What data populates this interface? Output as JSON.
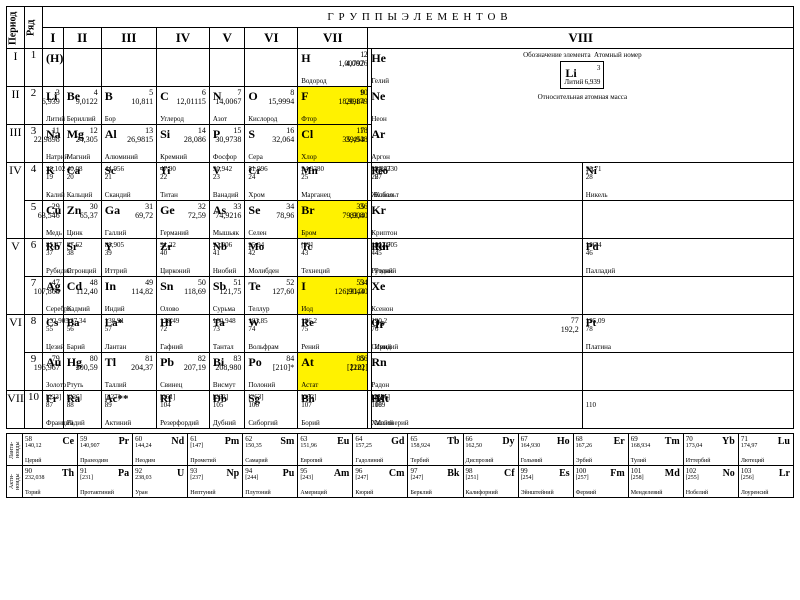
{
  "header": {
    "title": "Г Р У П П Ы   Э Л Е М Е Н Т О В"
  },
  "labels": {
    "period": "Период",
    "row": "Ряд",
    "lanth": "Ланта-ноиды",
    "actin": "Акти-ноиды"
  },
  "groups": [
    "I",
    "II",
    "III",
    "IV",
    "V",
    "VI",
    "VII",
    "VIII"
  ],
  "periods": [
    "I",
    "II",
    "III",
    "IV",
    "V",
    "VI",
    "VII"
  ],
  "rows": [
    "1",
    "2",
    "3",
    "4",
    "5",
    "6",
    "7",
    "8",
    "9",
    "10"
  ],
  "legend": {
    "l1": "Обозначение элемента",
    "l2": "Атомный номер",
    "l3": "Относительная атомная масса",
    "ex": {
      "sym": "Li",
      "num": "3",
      "mass": "6,939",
      "name": "Литий"
    }
  },
  "colors": {
    "highlight": "#fff200",
    "bg": "#ffffff",
    "border": "#000000"
  },
  "e": {
    "H": {
      "s": "H",
      "n": "1",
      "m": "1,00797",
      "nm": "Водород"
    },
    "Hp": {
      "s": "(H)",
      "n": "",
      "m": "",
      "nm": ""
    },
    "He": {
      "s": "He",
      "n": "2",
      "m": "4,0026",
      "nm": "Гелий"
    },
    "Li": {
      "s": "Li",
      "n": "3",
      "m": "6,939",
      "nm": "Литий"
    },
    "Be": {
      "s": "Be",
      "n": "4",
      "m": "9,0122",
      "nm": "Бериллий"
    },
    "B": {
      "s": "B",
      "n": "5",
      "m": "10,811",
      "nm": "Бор"
    },
    "C": {
      "s": "C",
      "n": "6",
      "m": "12,01115",
      "nm": "Углерод"
    },
    "N": {
      "s": "N",
      "n": "7",
      "m": "14,0067",
      "nm": "Азот"
    },
    "O": {
      "s": "O",
      "n": "8",
      "m": "15,9994",
      "nm": "Кислород"
    },
    "F": {
      "s": "F",
      "n": "9",
      "m": "18,9984",
      "nm": "Фтор"
    },
    "Ne": {
      "s": "Ne",
      "n": "10",
      "m": "20,179",
      "nm": "Неон"
    },
    "Na": {
      "s": "Na",
      "n": "11",
      "m": "22,9898",
      "nm": "Натрий"
    },
    "Mg": {
      "s": "Mg",
      "n": "12",
      "m": "24,305",
      "nm": "Магний"
    },
    "Al": {
      "s": "Al",
      "n": "13",
      "m": "26,9815",
      "nm": "Алюминий"
    },
    "Si": {
      "s": "Si",
      "n": "14",
      "m": "28,086",
      "nm": "Кремний"
    },
    "P": {
      "s": "P",
      "n": "15",
      "m": "30,9738",
      "nm": "Фосфор"
    },
    "S": {
      "s": "S",
      "n": "16",
      "m": "32,064",
      "nm": "Сера"
    },
    "Cl": {
      "s": "Cl",
      "n": "17",
      "m": "35,453",
      "nm": "Хлор"
    },
    "Ar": {
      "s": "Ar",
      "n": "18",
      "m": "39,948",
      "nm": "Аргон"
    },
    "K": {
      "s": "K",
      "n": "19",
      "m": "39,102",
      "nm": "Калий"
    },
    "Ca": {
      "s": "Ca",
      "n": "20",
      "m": "40,08",
      "nm": "Кальций"
    },
    "Sc": {
      "s": "Sc",
      "n": "21",
      "m": "44,956",
      "nm": "Скандий"
    },
    "Ti": {
      "s": "Ti",
      "n": "22",
      "m": "47,90",
      "nm": "Титан"
    },
    "V": {
      "s": "V",
      "n": "23",
      "m": "50,942",
      "nm": "Ванадий"
    },
    "Cr": {
      "s": "Cr",
      "n": "24",
      "m": "51,996",
      "nm": "Хром"
    },
    "Mn": {
      "s": "Mn",
      "n": "25",
      "m": "54,9380",
      "nm": "Марганец"
    },
    "Fe": {
      "s": "Fe",
      "n": "26",
      "m": "55,847",
      "nm": "Железо"
    },
    "Co": {
      "s": "Co",
      "n": "27",
      "m": "58,9330",
      "nm": "Кобальт"
    },
    "Ni": {
      "s": "Ni",
      "n": "28",
      "m": "58,71",
      "nm": "Никель"
    },
    "Cu": {
      "s": "Cu",
      "n": "29",
      "m": "63,546",
      "nm": "Медь"
    },
    "Zn": {
      "s": "Zn",
      "n": "30",
      "m": "65,37",
      "nm": "Цинк"
    },
    "Ga": {
      "s": "Ga",
      "n": "31",
      "m": "69,72",
      "nm": "Галлий"
    },
    "Ge": {
      "s": "Ge",
      "n": "32",
      "m": "72,59",
      "nm": "Германий"
    },
    "As": {
      "s": "As",
      "n": "33",
      "m": "74,9216",
      "nm": "Мышьяк"
    },
    "Se": {
      "s": "Se",
      "n": "34",
      "m": "78,96",
      "nm": "Селен"
    },
    "Br": {
      "s": "Br",
      "n": "35",
      "m": "79,904",
      "nm": "Бром"
    },
    "Kr": {
      "s": "Kr",
      "n": "36",
      "m": "83,80",
      "nm": "Криптон"
    },
    "Rb": {
      "s": "Rb",
      "n": "37",
      "m": "85,47",
      "nm": "Рубидий"
    },
    "Sr": {
      "s": "Sr",
      "n": "38",
      "m": "87,62",
      "nm": "Стронций"
    },
    "Y": {
      "s": "Y",
      "n": "39",
      "m": "88,905",
      "nm": "Иттрий"
    },
    "Zr": {
      "s": "Zr",
      "n": "40",
      "m": "91,22",
      "nm": "Цирконий"
    },
    "Nb": {
      "s": "Nb",
      "n": "41",
      "m": "92,906",
      "nm": "Ниобий"
    },
    "Mo": {
      "s": "Mo",
      "n": "42",
      "m": "95,94",
      "nm": "Молибден"
    },
    "Tc": {
      "s": "Tc",
      "n": "43",
      "m": "[99]",
      "nm": "Технеций"
    },
    "Ru": {
      "s": "Ru",
      "n": "44",
      "m": "101,07",
      "nm": "Рутений"
    },
    "Rh": {
      "s": "Rh",
      "n": "45",
      "m": "102,905",
      "nm": "Родий"
    },
    "Pd": {
      "s": "Pd",
      "n": "46",
      "m": "106,4",
      "nm": "Палладий"
    },
    "Ag": {
      "s": "Ag",
      "n": "47",
      "m": "107,868",
      "nm": "Серебро"
    },
    "Cd": {
      "s": "Cd",
      "n": "48",
      "m": "112,40",
      "nm": "Кадмий"
    },
    "In": {
      "s": "In",
      "n": "49",
      "m": "114,82",
      "nm": "Индий"
    },
    "Sn": {
      "s": "Sn",
      "n": "50",
      "m": "118,69",
      "nm": "Олово"
    },
    "Sb": {
      "s": "Sb",
      "n": "51",
      "m": "121,75",
      "nm": "Сурьма"
    },
    "Te": {
      "s": "Te",
      "n": "52",
      "m": "127,60",
      "nm": "Теллур"
    },
    "I": {
      "s": "I",
      "n": "53",
      "m": "126,9044",
      "nm": "Иод"
    },
    "Xe": {
      "s": "Xe",
      "n": "54",
      "m": "131,30",
      "nm": "Ксенон"
    },
    "Cs": {
      "s": "Cs",
      "n": "55",
      "m": "132,905",
      "nm": "Цезий"
    },
    "Ba": {
      "s": "Ba",
      "n": "56",
      "m": "137,34",
      "nm": "Барий"
    },
    "La": {
      "s": "La*",
      "n": "57",
      "m": "138,91",
      "nm": "Лантан"
    },
    "Hf": {
      "s": "Hf",
      "n": "72",
      "m": "178,49",
      "nm": "Гафний"
    },
    "Ta": {
      "s": "Ta",
      "n": "73",
      "m": "180,948",
      "nm": "Тантал"
    },
    "W": {
      "s": "W",
      "n": "74",
      "m": "183,85",
      "nm": "Вольфрам"
    },
    "Re": {
      "s": "Re",
      "n": "75",
      "m": "186,2",
      "nm": "Рений"
    },
    "Os": {
      "s": "Os",
      "n": "76",
      "m": "190,2",
      "nm": "Осмий"
    },
    "Ir": {
      "s": "Ir",
      "n": "77",
      "m": "192,2",
      "nm": "Иридий"
    },
    "Pt": {
      "s": "Pt",
      "n": "78",
      "m": "195,09",
      "nm": "Платина"
    },
    "Au": {
      "s": "Au",
      "n": "79",
      "m": "196,967",
      "nm": "Золото"
    },
    "Hg": {
      "s": "Hg",
      "n": "80",
      "m": "200,59",
      "nm": "Ртуть"
    },
    "Tl": {
      "s": "Tl",
      "n": "81",
      "m": "204,37",
      "nm": "Таллий"
    },
    "Pb": {
      "s": "Pb",
      "n": "82",
      "m": "207,19",
      "nm": "Свинец"
    },
    "Bi": {
      "s": "Bi",
      "n": "83",
      "m": "208,980",
      "nm": "Висмут"
    },
    "Po": {
      "s": "Po",
      "n": "84",
      "m": "[210]*",
      "nm": "Полоний"
    },
    "At": {
      "s": "At",
      "n": "85",
      "m": "[210]",
      "nm": "Астат"
    },
    "Rn": {
      "s": "Rn",
      "n": "86",
      "m": "[222]",
      "nm": "Радон"
    },
    "Fr": {
      "s": "Fr",
      "n": "87",
      "m": "[223]",
      "nm": "Франций"
    },
    "Ra": {
      "s": "Ra",
      "n": "88",
      "m": "[226]",
      "nm": "Радий"
    },
    "Ac": {
      "s": "Ac**",
      "n": "89",
      "m": "[227]",
      "nm": "Актиний"
    },
    "Rf": {
      "s": "Rf",
      "n": "104",
      "m": "[261]",
      "nm": "Резерфордий"
    },
    "Db": {
      "s": "Db",
      "n": "105",
      "m": "[262]",
      "nm": "Дубний"
    },
    "Sg": {
      "s": "Sg",
      "n": "106",
      "m": "[263]",
      "nm": "Сиборгий"
    },
    "Bh": {
      "s": "Bh",
      "n": "107",
      "m": "[262]",
      "nm": "Борий"
    },
    "Hs": {
      "s": "Hs",
      "n": "108",
      "m": "[265]",
      "nm": "Хассий"
    },
    "Mt": {
      "s": "Mt",
      "n": "109",
      "m": "[266]",
      "nm": "Мейтнерий"
    },
    "n110": {
      "s": "",
      "n": "110",
      "m": "",
      "nm": ""
    }
  },
  "lan": [
    {
      "s": "Ce",
      "n": "58",
      "m": "140,12",
      "nm": "Церий"
    },
    {
      "s": "Pr",
      "n": "59",
      "m": "140,907",
      "nm": "Празеодим"
    },
    {
      "s": "Nd",
      "n": "60",
      "m": "144,24",
      "nm": "Неодим"
    },
    {
      "s": "Pm",
      "n": "61",
      "m": "[147]",
      "nm": "Прометий"
    },
    {
      "s": "Sm",
      "n": "62",
      "m": "150,35",
      "nm": "Самарий"
    },
    {
      "s": "Eu",
      "n": "63",
      "m": "151,96",
      "nm": "Европий"
    },
    {
      "s": "Gd",
      "n": "64",
      "m": "157,25",
      "nm": "Гадолиний"
    },
    {
      "s": "Tb",
      "n": "65",
      "m": "158,924",
      "nm": "Тербий"
    },
    {
      "s": "Dy",
      "n": "66",
      "m": "162,50",
      "nm": "Диспрозий"
    },
    {
      "s": "Ho",
      "n": "67",
      "m": "164,930",
      "nm": "Гольмий"
    },
    {
      "s": "Er",
      "n": "68",
      "m": "167,26",
      "nm": "Эрбий"
    },
    {
      "s": "Tm",
      "n": "69",
      "m": "168,934",
      "nm": "Тулий"
    },
    {
      "s": "Yb",
      "n": "70",
      "m": "173,04",
      "nm": "Иттербий"
    },
    {
      "s": "Lu",
      "n": "71",
      "m": "174,97",
      "nm": "Лютеций"
    }
  ],
  "act": [
    {
      "s": "Th",
      "n": "90",
      "m": "232,038",
      "nm": "Торий"
    },
    {
      "s": "Pa",
      "n": "91",
      "m": "[231]",
      "nm": "Протактиний"
    },
    {
      "s": "U",
      "n": "92",
      "m": "238,03",
      "nm": "Уран"
    },
    {
      "s": "Np",
      "n": "93",
      "m": "[237]",
      "nm": "Нептуний"
    },
    {
      "s": "Pu",
      "n": "94",
      "m": "[244]",
      "nm": "Плутоний"
    },
    {
      "s": "Am",
      "n": "95",
      "m": "[243]",
      "nm": "Америций"
    },
    {
      "s": "Cm",
      "n": "96",
      "m": "[247]",
      "nm": "Кюрий"
    },
    {
      "s": "Bk",
      "n": "97",
      "m": "[247]",
      "nm": "Берклий"
    },
    {
      "s": "Cf",
      "n": "98",
      "m": "[251]",
      "nm": "Калифорний"
    },
    {
      "s": "Es",
      "n": "99",
      "m": "[254]",
      "nm": "Эйнштейний"
    },
    {
      "s": "Fm",
      "n": "100",
      "m": "[257]",
      "nm": "Фермий"
    },
    {
      "s": "Md",
      "n": "101",
      "m": "[258]",
      "nm": "Менделевий"
    },
    {
      "s": "No",
      "n": "102",
      "m": "[255]",
      "nm": "Нобелий"
    },
    {
      "s": "Lr",
      "n": "103",
      "m": "[256]",
      "nm": "Лоуренсий"
    }
  ],
  "layout": {
    "rows": [
      {
        "p": "I",
        "r": "1",
        "cells": [
          "Hp",
          "",
          "",
          "",
          "",
          "",
          "H",
          "He"
        ],
        "legend": true
      },
      {
        "p": "II",
        "r": "2",
        "cells": [
          "Li",
          "Be",
          "B",
          "C",
          "N",
          "O",
          "F",
          "Ne"
        ],
        "hl": [
          "F"
        ],
        "legend": true
      },
      {
        "p": "III",
        "r": "3",
        "cells": [
          "Na",
          "Mg",
          "Al",
          "Si",
          "P",
          "S",
          "Cl",
          "Ar"
        ],
        "hl": [
          "Cl"
        ],
        "legend": true
      },
      {
        "p": "IV",
        "r": "4",
        "sub": true,
        "cells": [
          "K",
          "Ca",
          "Sc",
          "Ti",
          "V",
          "Cr",
          "Mn",
          "Fe",
          "Co",
          "Ni"
        ],
        "pspan": 2
      },
      {
        "r": "5",
        "sub": true,
        "cells": [
          "Cu",
          "Zn",
          "Ga",
          "Ge",
          "As",
          "Se",
          "Br",
          "Kr",
          "",
          ""
        ],
        "hl": [
          "Br"
        ]
      },
      {
        "p": "V",
        "r": "6",
        "sub": true,
        "cells": [
          "Rb",
          "Sr",
          "Y",
          "Zr",
          "Nb",
          "Mo",
          "Tc",
          "Ru",
          "Rh",
          "Pd"
        ],
        "pspan": 2
      },
      {
        "r": "7",
        "sub": true,
        "cells": [
          "Ag",
          "Cd",
          "In",
          "Sn",
          "Sb",
          "Te",
          "I",
          "Xe",
          "",
          ""
        ],
        "hl": [
          "I"
        ]
      },
      {
        "p": "VI",
        "r": "8",
        "sub": true,
        "cells": [
          "Cs",
          "Ba",
          "La",
          "Hf",
          "Ta",
          "W",
          "Re",
          "Os",
          "Ir",
          "Pt"
        ],
        "pspan": 2
      },
      {
        "r": "9",
        "sub": true,
        "cells": [
          "Au",
          "Hg",
          "Tl",
          "Pb",
          "Bi",
          "Po",
          "At",
          "Rn",
          "",
          ""
        ],
        "hl": [
          "At"
        ]
      },
      {
        "p": "VII",
        "r": "10",
        "sub": true,
        "cells": [
          "Fr",
          "Ra",
          "Ac",
          "Rf",
          "Db",
          "Sg",
          "Bh",
          "Hs",
          "Mt",
          "n110"
        ]
      }
    ]
  }
}
